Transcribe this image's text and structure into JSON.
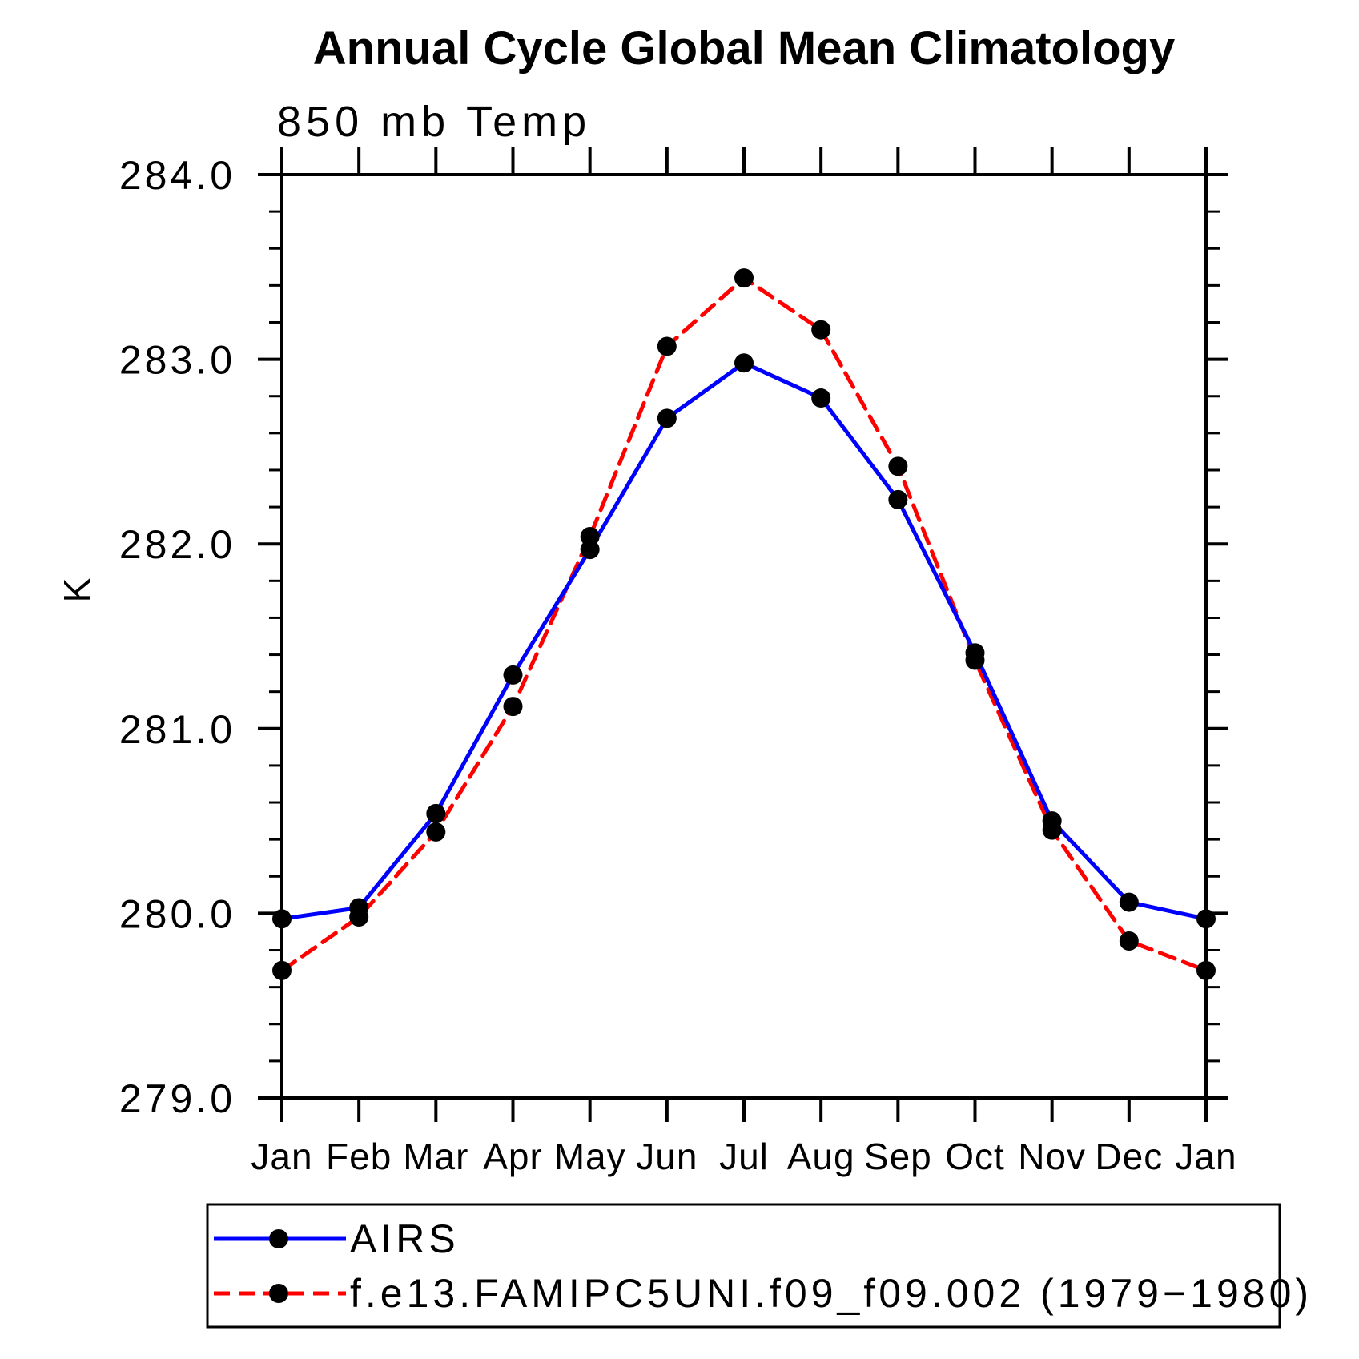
{
  "title": "Annual Cycle Global Mean Climatology",
  "subtitle": "850 mb Temp",
  "y_axis_label": "K",
  "legend": {
    "entries": [
      {
        "label": "AIRS"
      },
      {
        "label": "f.e13.FAMIPC5UNI.f09_f09.002 (1979−1980)"
      }
    ]
  },
  "colors": {
    "background": "#ffffff",
    "axis": "#000000",
    "text": "#000000",
    "marker": "#000000",
    "airs_line": "#0000ff",
    "model_line": "#ff0000"
  },
  "chart_data": {
    "type": "line",
    "title": "Annual Cycle Global Mean Climatology",
    "subtitle": "850 mb Temp",
    "xlabel": "",
    "ylabel": "K",
    "categories": [
      "Jan",
      "Feb",
      "Mar",
      "Apr",
      "May",
      "Jun",
      "Jul",
      "Aug",
      "Sep",
      "Oct",
      "Nov",
      "Dec",
      "Jan"
    ],
    "ylim": [
      279.0,
      284.0
    ],
    "ytick_major_interval": 1.0,
    "ytick_minor_interval": 0.2,
    "ytick_labels": [
      "284.0",
      "283.0",
      "282.0",
      "281.0",
      "280.0",
      "279.0"
    ],
    "grid": false,
    "legend_position": "bottom-left",
    "series": [
      {
        "name": "AIRS",
        "line_color": "#0000ff",
        "line_style": "solid",
        "marker": "filled-circle",
        "marker_color": "#000000",
        "values": [
          279.97,
          280.03,
          280.54,
          281.29,
          281.97,
          282.68,
          282.98,
          282.79,
          282.24,
          281.41,
          280.5,
          280.06,
          279.97
        ]
      },
      {
        "name": "f.e13.FAMIPC5UNI.f09_f09.002 (1979−1980)",
        "line_color": "#ff0000",
        "line_style": "dashed",
        "marker": "filled-circle",
        "marker_color": "#000000",
        "values": [
          279.69,
          279.98,
          280.44,
          281.12,
          282.04,
          283.07,
          283.44,
          283.16,
          282.42,
          281.37,
          280.45,
          279.85,
          279.69
        ]
      }
    ]
  }
}
